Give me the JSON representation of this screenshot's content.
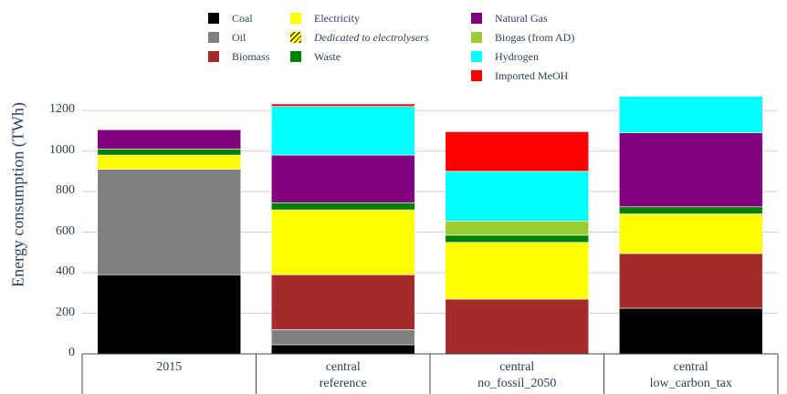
{
  "legend": {
    "items": [
      {
        "label": "Coal",
        "color": "#000000",
        "italic": false
      },
      {
        "label": "Oil",
        "color": "#808080",
        "italic": false
      },
      {
        "label": "Biomass",
        "color": "#a52a2a",
        "italic": false
      },
      {
        "label": "Electricity",
        "color": "#ffff00",
        "italic": false
      },
      {
        "label": "Dedicated to electrolysers",
        "color": "#ffff00",
        "italic": true,
        "hatched": true
      },
      {
        "label": "Waste",
        "color": "#008000",
        "italic": false
      },
      {
        "label": "Natural Gas",
        "color": "#800080",
        "italic": false
      },
      {
        "label": "Biogas (from AD)",
        "color": "#9acd32",
        "italic": false
      },
      {
        "label": "Hydrogen",
        "color": "#00ffff",
        "italic": false
      },
      {
        "label": "Imported MeOH",
        "color": "#ff0000",
        "italic": false
      }
    ]
  },
  "chart_data": {
    "type": "bar",
    "stacked": true,
    "ylabel": "Energy consumption (TWh)",
    "xlabel": "",
    "ylim": [
      0,
      1250
    ],
    "yticks": [
      0,
      200,
      400,
      600,
      800,
      1000,
      1200
    ],
    "grid": true,
    "legend_position": "top",
    "categories": [
      [
        "2015"
      ],
      [
        "central",
        "reference"
      ],
      [
        "central",
        "no_fossil_2050"
      ],
      [
        "central",
        "low_carbon_tax"
      ]
    ],
    "series": [
      {
        "name": "Coal",
        "color": "#000000",
        "values": [
          390,
          45,
          0,
          225
        ]
      },
      {
        "name": "Oil",
        "color": "#808080",
        "values": [
          520,
          75,
          0,
          0
        ]
      },
      {
        "name": "Biomass",
        "color": "#a52a2a",
        "values": [
          0,
          270,
          270,
          270
        ]
      },
      {
        "name": "Electricity",
        "color": "#ffff00",
        "values": [
          70,
          320,
          280,
          195
        ]
      },
      {
        "name": "Waste",
        "color": "#008000",
        "values": [
          30,
          35,
          35,
          35
        ]
      },
      {
        "name": "Biogas (from AD)",
        "color": "#9acd32",
        "values": [
          0,
          0,
          70,
          0
        ]
      },
      {
        "name": "Natural Gas",
        "color": "#800080",
        "values": [
          95,
          235,
          0,
          365
        ]
      },
      {
        "name": "Hydrogen",
        "color": "#00ffff",
        "values": [
          0,
          240,
          245,
          180
        ]
      },
      {
        "name": "Imported MeOH",
        "color": "#ff0000",
        "values": [
          0,
          12,
          195,
          0
        ]
      }
    ]
  }
}
